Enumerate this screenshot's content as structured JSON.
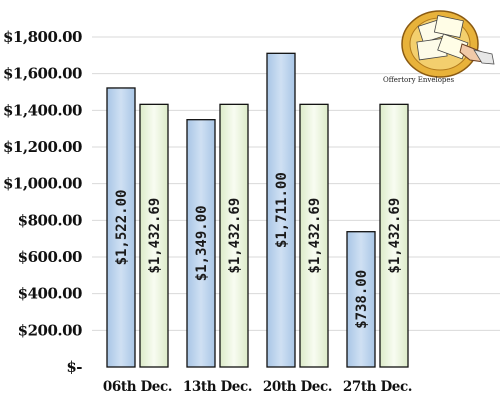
{
  "chart_data": {
    "type": "bar",
    "title": "",
    "categories": [
      "06th Dec.",
      "13th Dec.",
      "20th Dec.",
      "27th Dec."
    ],
    "series": [
      {
        "values": [
          1522.0,
          1349.0,
          1711.0,
          738.0
        ],
        "labels": [
          "$1,522.00",
          "$1,349.00",
          "$1,711.00",
          "$738.00"
        ],
        "color": "#bcd3ec"
      },
      {
        "values": [
          1432.69,
          1432.69,
          1432.69,
          1432.69
        ],
        "labels": [
          "$1,432.69",
          "$1,432.69",
          "$1,432.69",
          "$1,432.69"
        ],
        "color": "#eef6df"
      }
    ],
    "ylim": [
      0,
      1800
    ],
    "yticks": [
      0,
      200,
      400,
      600,
      800,
      1000,
      1200,
      1400,
      1600,
      1800
    ],
    "ytick_labels": [
      "$-",
      "$200.00",
      "$400.00",
      "$600.00",
      "$800.00",
      "$1,000.00",
      "$1,200.00",
      "$1,400.00",
      "$1,600.00",
      "$1,800.00"
    ],
    "grid": true,
    "legend": "none"
  },
  "logo": {
    "caption": "Offertory Envelopes",
    "icon": "envelopes-icon"
  }
}
